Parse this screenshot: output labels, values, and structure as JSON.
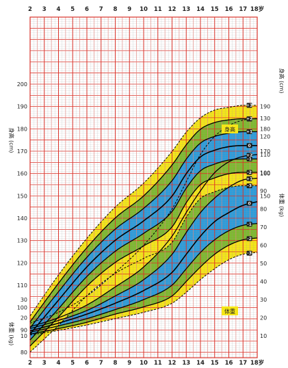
{
  "chart_data": {
    "type": "line",
    "title": "",
    "x_unit_label": "岁",
    "x_ticks": [
      2,
      3,
      4,
      5,
      6,
      7,
      8,
      9,
      10,
      11,
      12,
      13,
      14,
      15,
      16,
      17,
      18
    ],
    "xlim": [
      2,
      18
    ],
    "axes": {
      "height_left": {
        "label": "身高 (cm)",
        "ticks": [
          80,
          90,
          100,
          110,
          120,
          130,
          140,
          150,
          160,
          170,
          180,
          190,
          200
        ]
      },
      "height_right": {
        "label": "身高 (cm)",
        "ticks": [
          150,
          160,
          170,
          180,
          190
        ]
      },
      "weight_left": {
        "label": "体重 (kg)",
        "ticks": [
          10,
          20,
          30
        ]
      },
      "weight_right": {
        "label": "体重 (kg)",
        "ticks": [
          10,
          20,
          30,
          40,
          50,
          60,
          70,
          80,
          90,
          100,
          110,
          120,
          130
        ]
      }
    },
    "panel_labels": {
      "height": "身高",
      "weight": "体重"
    },
    "sd_labels": [
      "+3",
      "+2",
      "+1",
      "0",
      "-1",
      "-2",
      "-3"
    ],
    "band_colors": {
      "outer": "#f5e617",
      "middle": "#7fb92f",
      "inner": "#2d9cdb"
    },
    "grid": true,
    "height_series": [
      {
        "sd": "+3",
        "x": [
          2,
          4,
          6,
          8,
          10,
          12,
          13,
          14,
          15,
          16,
          17,
          18
        ],
        "values": [
          96.3,
          114.6,
          131.0,
          145.0,
          155.7,
          169.9,
          178.5,
          184.9,
          188.4,
          189.6,
          190.5,
          190.5
        ]
      },
      {
        "sd": "+2",
        "x": [
          2,
          4,
          6,
          8,
          10,
          12,
          13,
          14,
          15,
          16,
          17,
          18
        ],
        "values": [
          93.6,
          110.9,
          126.8,
          140.1,
          150.0,
          163.8,
          172.8,
          179.8,
          182.8,
          184.0,
          184.5,
          184.5
        ]
      },
      {
        "sd": "+1",
        "x": [
          2,
          4,
          6,
          8,
          10,
          12,
          13,
          14,
          15,
          16,
          17,
          18
        ],
        "values": [
          90.9,
          107.1,
          122.5,
          135.1,
          144.4,
          156.8,
          166.4,
          173.6,
          176.6,
          178.0,
          178.7,
          178.7
        ]
      },
      {
        "sd": "0",
        "x": [
          2,
          4,
          6,
          8,
          10,
          12,
          13,
          14,
          15,
          16,
          17,
          18
        ],
        "values": [
          88.2,
          103.3,
          118.2,
          130.1,
          138.8,
          149.9,
          159.9,
          167.4,
          170.4,
          172.0,
          172.5,
          172.5
        ]
      },
      {
        "sd": "-1",
        "x": [
          2,
          4,
          6,
          8,
          10,
          12,
          13,
          14,
          15,
          16,
          17,
          18
        ],
        "values": [
          85.5,
          99.5,
          113.9,
          125.2,
          133.2,
          143.0,
          153.4,
          161.2,
          164.2,
          166.0,
          166.5,
          166.5
        ]
      },
      {
        "sd": "-2",
        "x": [
          2,
          4,
          6,
          8,
          10,
          12,
          13,
          14,
          15,
          16,
          17,
          18
        ],
        "values": [
          82.8,
          95.8,
          109.6,
          120.2,
          127.6,
          136.1,
          146.9,
          155.0,
          158.0,
          159.9,
          160.5,
          160.5
        ]
      },
      {
        "sd": "-3",
        "x": [
          2,
          4,
          6,
          8,
          10,
          12,
          13,
          14,
          15,
          16,
          17,
          18
        ],
        "values": [
          80.1,
          92.0,
          105.3,
          115.3,
          122.0,
          129.2,
          140.4,
          148.8,
          151.8,
          153.8,
          154.5,
          154.5
        ]
      }
    ],
    "weight_series": [
      {
        "sd": "+3",
        "x": [
          2,
          4,
          6,
          8,
          10,
          12,
          13,
          14,
          15,
          16,
          17,
          18
        ],
        "values": [
          17.0,
          23.0,
          32.0,
          45.0,
          60.0,
          80.0,
          95.0,
          110.0,
          120.0,
          126.0,
          129.0,
          130.0
        ]
      },
      {
        "sd": "+2",
        "x": [
          2,
          4,
          6,
          8,
          10,
          12,
          13,
          14,
          15,
          16,
          17,
          18
        ],
        "values": [
          15.0,
          20.0,
          27.0,
          37.0,
          48.0,
          65.0,
          78.0,
          90.0,
          100.0,
          106.0,
          109.0,
          110.0
        ]
      },
      {
        "sd": "+1",
        "x": [
          2,
          4,
          6,
          8,
          10,
          12,
          13,
          14,
          15,
          16,
          17,
          18
        ],
        "values": [
          14.0,
          18.5,
          24.0,
          32.0,
          41.0,
          55.0,
          67.0,
          78.0,
          86.0,
          92.0,
          96.0,
          97.0
        ]
      },
      {
        "sd": "0",
        "x": [
          2,
          4,
          6,
          8,
          10,
          12,
          13,
          14,
          15,
          16,
          17,
          18
        ],
        "values": [
          12.8,
          17.0,
          22.0,
          28.0,
          35.0,
          45.0,
          55.0,
          65.0,
          73.0,
          78.0,
          82.0,
          84.0
        ]
      },
      {
        "sd": "-1",
        "x": [
          2,
          4,
          6,
          8,
          10,
          12,
          13,
          14,
          15,
          16,
          17,
          18
        ],
        "values": [
          12.0,
          15.5,
          19.5,
          24.5,
          30.0,
          38.0,
          47.0,
          56.0,
          63.0,
          68.0,
          71.0,
          72.0
        ]
      },
      {
        "sd": "-2",
        "x": [
          2,
          4,
          6,
          8,
          10,
          12,
          13,
          14,
          15,
          16,
          17,
          18
        ],
        "values": [
          11.0,
          14.0,
          17.5,
          22.0,
          26.0,
          32.0,
          40.0,
          48.0,
          55.0,
          60.0,
          63.0,
          64.0
        ]
      },
      {
        "sd": "-3",
        "x": [
          2,
          4,
          6,
          8,
          10,
          12,
          13,
          14,
          15,
          16,
          17,
          18
        ],
        "values": [
          10.5,
          13.0,
          16.0,
          19.5,
          23.0,
          28.0,
          34.0,
          41.0,
          47.0,
          52.0,
          55.0,
          56.0
        ]
      }
    ]
  }
}
